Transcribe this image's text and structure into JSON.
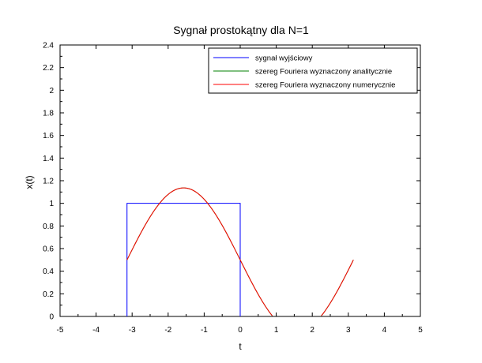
{
  "chart_data": {
    "type": "line",
    "title": "Sygnał prostokątny dla N=1",
    "xlabel": "t",
    "ylabel": "x(t)",
    "xlim": [
      -5,
      5
    ],
    "ylim": [
      0,
      2.4
    ],
    "xticks": [
      -5,
      -4,
      -3,
      -2,
      -1,
      0,
      1,
      2,
      3,
      4,
      5
    ],
    "yticks": [
      0,
      0.2,
      0.4,
      0.6,
      0.8,
      1,
      1.2,
      1.4,
      1.6,
      1.8,
      2,
      2.2,
      2.4
    ],
    "legend_position": "top-right",
    "series": [
      {
        "name": "sygnał wyjściowy",
        "color": "#0000ff",
        "x": [
          -3.1416,
          -3.1416,
          0,
          0
        ],
        "y": [
          0,
          1,
          1,
          0
        ]
      },
      {
        "name": "szereg Fouriera wyznaczony analitycznie",
        "color": "#008000",
        "formula": "0.5 - (2/pi)*sin(t)",
        "x_range": [
          -3.1416,
          3.1416
        ]
      },
      {
        "name": "szereg Fouriera wyznaczony numerycznie",
        "color": "#ff0000",
        "formula": "0.5 - (2/pi)*sin(t)",
        "x_range": [
          -3.1416,
          3.1416
        ]
      }
    ]
  }
}
